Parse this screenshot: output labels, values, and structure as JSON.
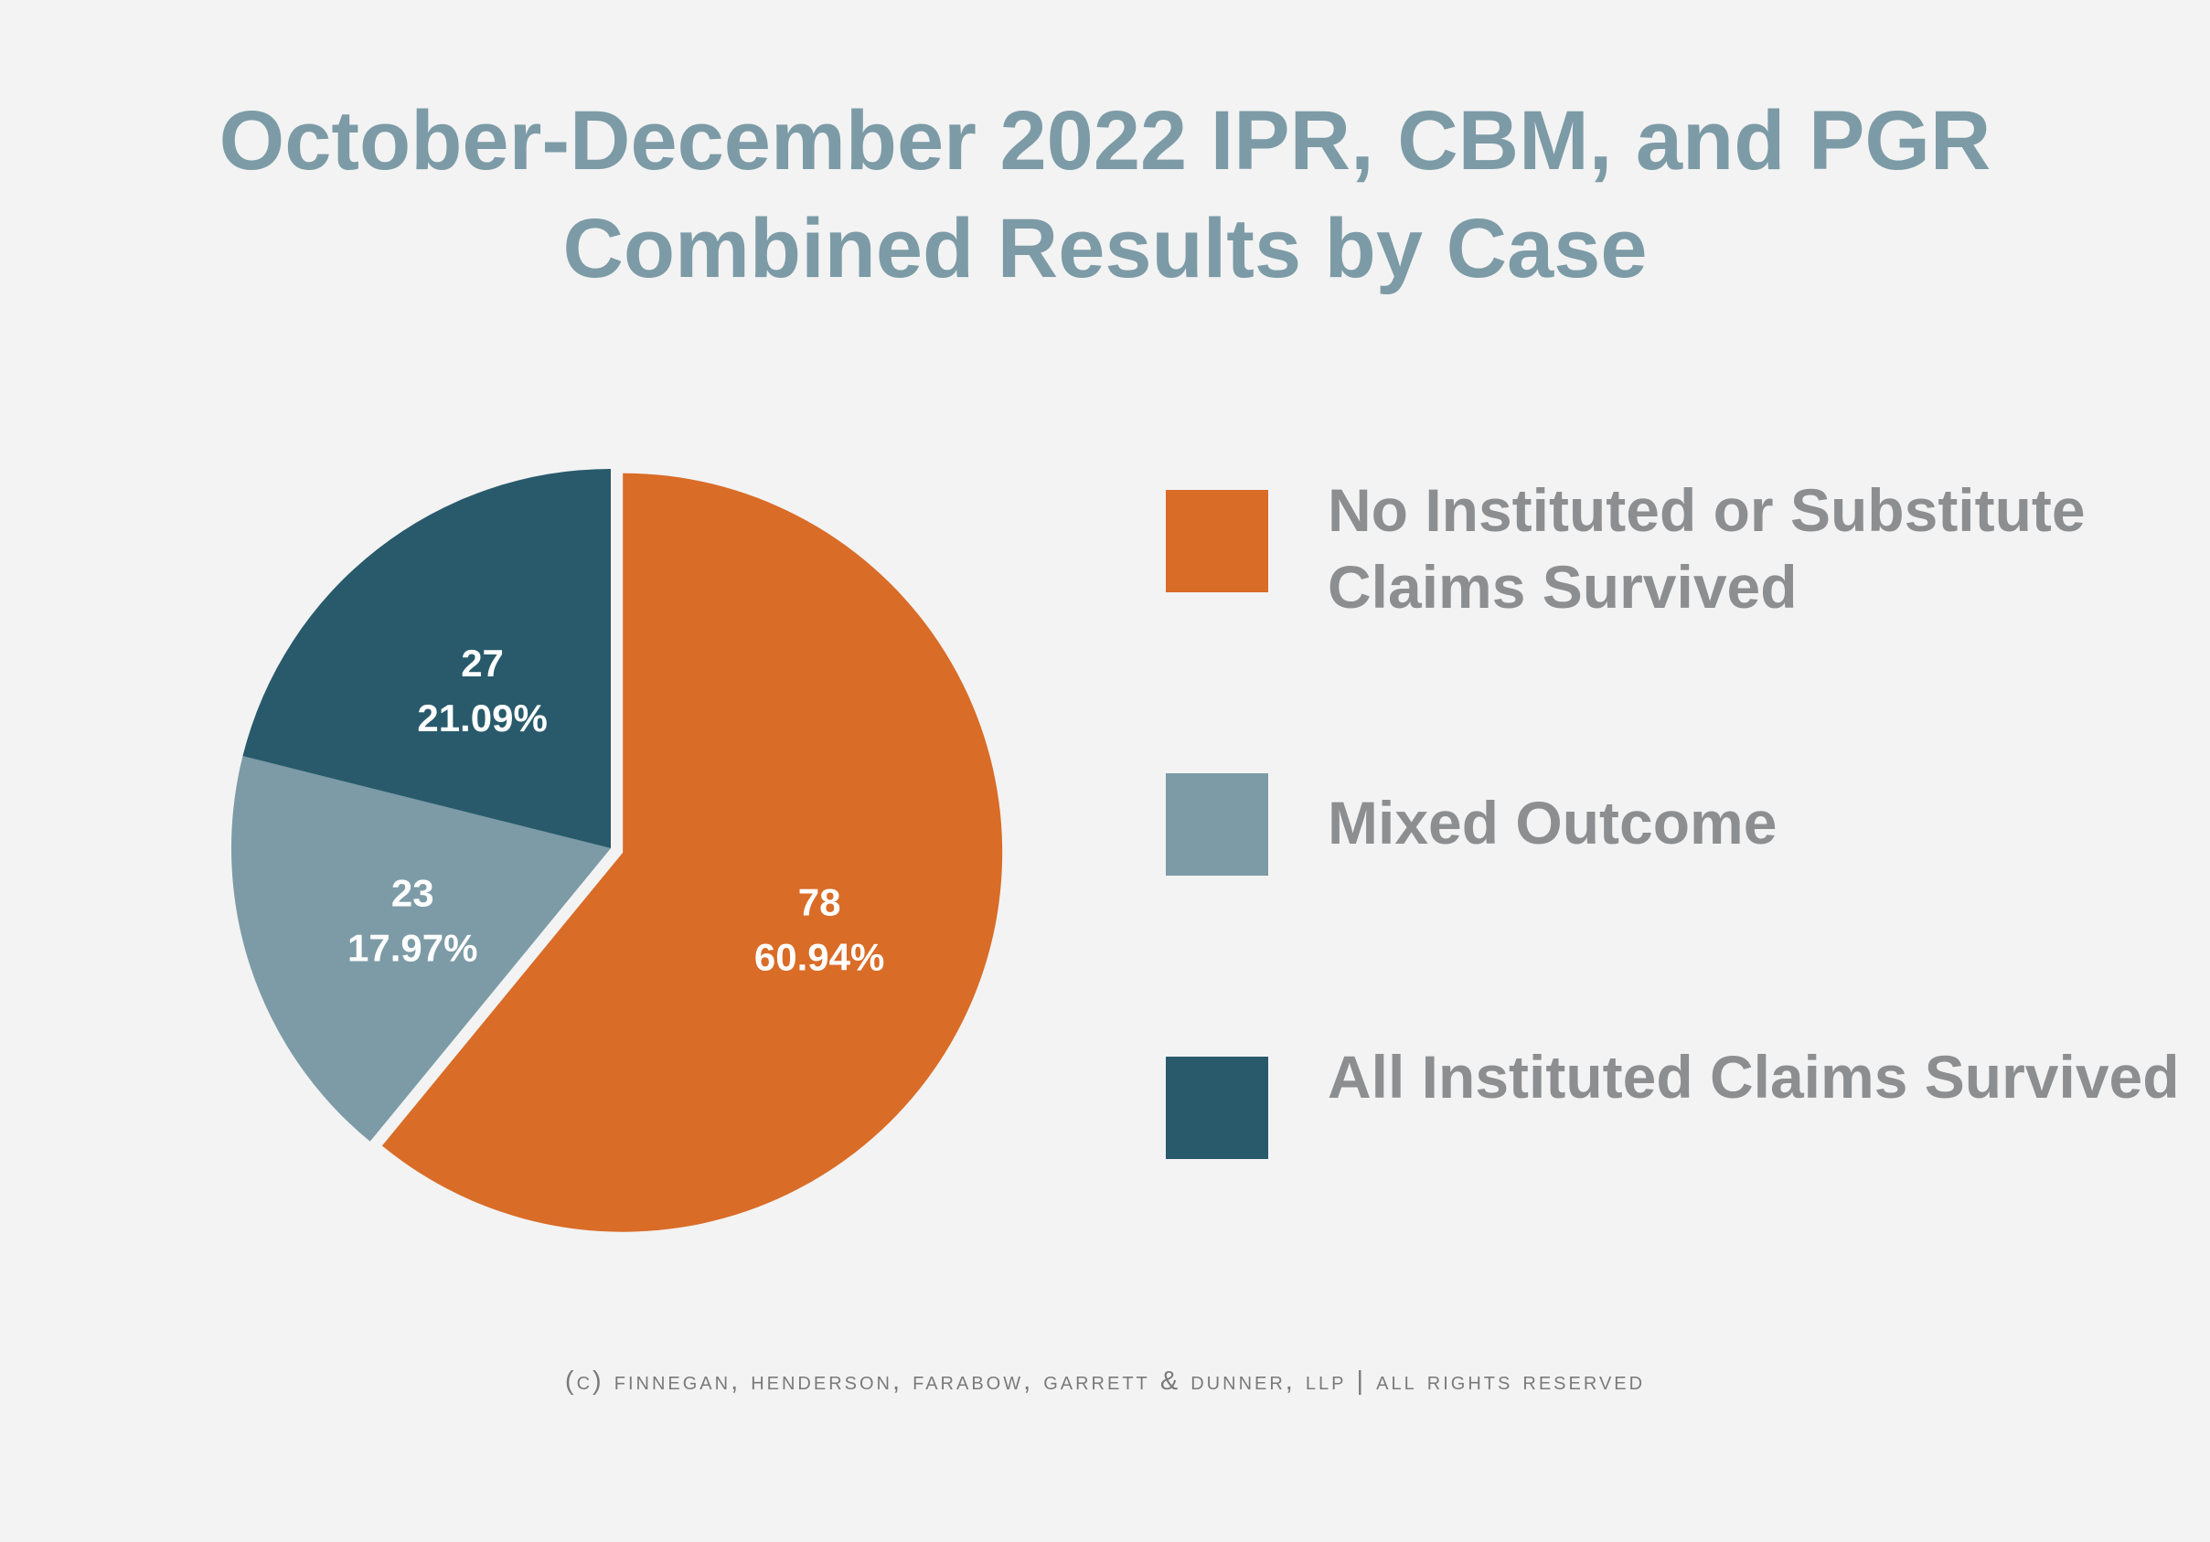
{
  "title": {
    "line1": "October-December 2022 IPR, CBM, and PGR",
    "line2": "Combined Results by Case"
  },
  "chart_data": {
    "type": "pie",
    "title": "October-December 2022 IPR, CBM, and PGR Combined Results by Case",
    "series": [
      {
        "name": "No Instituted or Substitute Claims Survived",
        "value": 78,
        "percent": "60.94%",
        "color": "#d96c27"
      },
      {
        "name": "Mixed Outcome",
        "value": 23,
        "percent": "17.97%",
        "color": "#7c9ba6"
      },
      {
        "name": "All Instituted Claims Survived",
        "value": 27,
        "percent": "21.09%",
        "color": "#285a6b"
      }
    ],
    "legend_position": "right",
    "start_angle": "12 o'clock",
    "direction": "clockwise",
    "exploded_slice": "No Instituted or Substitute Claims Survived"
  },
  "footer": "(c) finnegan, henderson, farabow, garrett & dunner, llp | all rights reserved"
}
